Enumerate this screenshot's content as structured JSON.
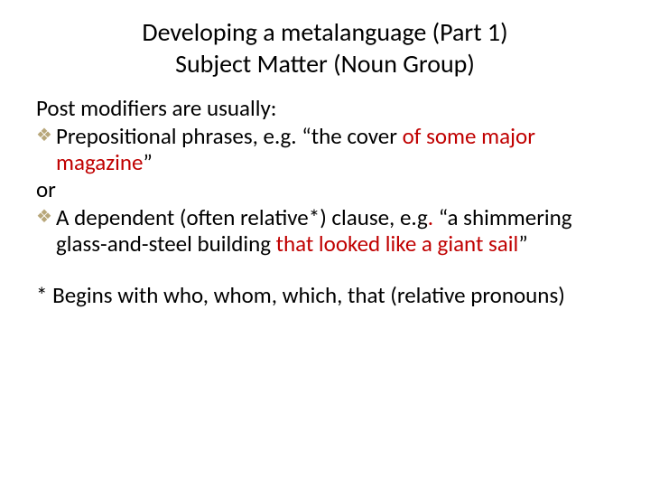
{
  "colors": {
    "background": "#ffffff",
    "text": "#000000",
    "accent_red": "#c00000",
    "bullet_icon": "#b8a77a"
  },
  "typography": {
    "font_family": "Calibri",
    "title_fontsize_pt": 28,
    "body_fontsize_pt": 25
  },
  "title": {
    "line1": "Developing a metalanguage (Part 1)",
    "line2": "Subject Matter (Noun Group)"
  },
  "body": {
    "intro": "Post modifiers are usually:",
    "bullets": [
      {
        "lead": "Prepositional phrases, e.g. “the cover ",
        "highlight": "of some major magazine",
        "trail": "”"
      },
      {
        "lead": "A dependent  (often relative*) clause, e.g",
        "dot": ".",
        "mid": " “a shimmering glass-and-steel building ",
        "highlight": "that looked like a giant sail",
        "trail": "”"
      }
    ],
    "or_label": "or",
    "footnote": "* Begins with who, whom, which, that (relative pronouns)"
  },
  "bullet_glyph": "❖"
}
